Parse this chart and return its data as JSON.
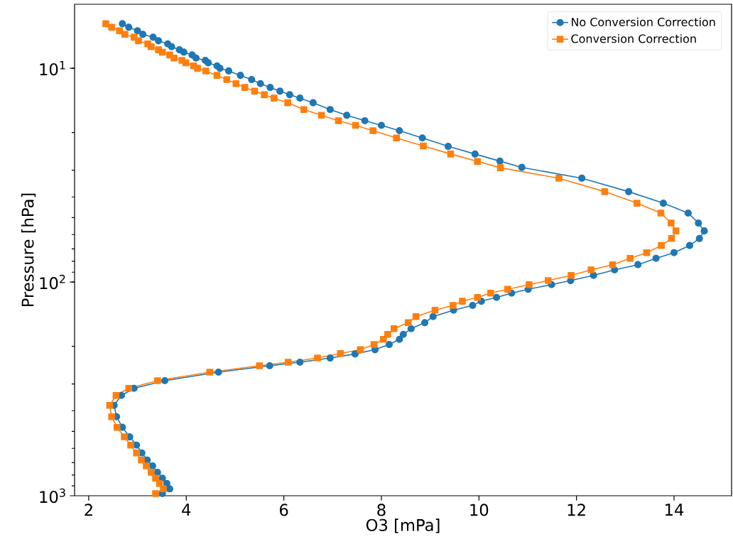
{
  "chart_data": {
    "type": "line",
    "xlabel": "O3 [mPa]",
    "ylabel": "Pressure [hPa]",
    "log": "y",
    "xlim": [
      1.71,
      15.18
    ],
    "xticks": [
      2,
      4,
      6,
      8,
      10,
      12,
      14
    ],
    "ylim": [
      1000,
      5.02
    ],
    "yticks": [
      {
        "value": 10,
        "label": "10$^{1}$"
      },
      {
        "value": 100,
        "label": "10$^{2}$"
      },
      {
        "value": 1000,
        "label": "10$^{3}$"
      }
    ],
    "legend": "top right",
    "grid": false,
    "line_style": "solid",
    "series": [
      {
        "name": "No Conversion Correction",
        "color": "#1f77b4",
        "marker": "circle",
        "x": [
          2.69,
          2.82,
          3.0,
          3.11,
          3.32,
          3.43,
          3.62,
          3.7,
          3.86,
          3.95,
          4.12,
          4.2,
          4.39,
          4.45,
          4.63,
          4.69,
          4.87,
          5.11,
          5.34,
          5.52,
          5.72,
          5.92,
          6.12,
          6.33,
          6.6,
          6.95,
          7.29,
          7.66,
          8.0,
          8.37,
          8.84,
          9.37,
          9.92,
          10.43,
          10.88,
          12.11,
          13.07,
          13.78,
          14.29,
          14.5,
          14.62,
          14.52,
          14.32,
          14.0,
          13.63,
          13.26,
          12.78,
          12.35,
          11.88,
          11.49,
          11.01,
          10.67,
          10.36,
          10.05,
          9.87,
          9.48,
          9.06,
          8.89,
          8.61,
          8.45,
          8.37,
          8.16,
          7.87,
          7.46,
          6.95,
          6.33,
          5.71,
          4.66,
          3.56,
          2.93,
          2.67,
          2.52,
          2.57,
          2.69,
          2.84,
          2.98,
          3.09,
          3.2,
          3.31,
          3.41,
          3.51,
          3.6,
          3.66,
          3.51
        ],
        "values": [
          6.19,
          6.43,
          6.68,
          6.94,
          7.16,
          7.44,
          7.69,
          7.93,
          8.2,
          8.41,
          8.67,
          8.96,
          9.19,
          9.43,
          9.75,
          10.0,
          10.3,
          10.8,
          11.3,
          11.8,
          12.3,
          12.8,
          13.3,
          13.8,
          14.5,
          15.6,
          16.6,
          17.6,
          18.5,
          19.6,
          21.2,
          23.2,
          25.2,
          27.2,
          29.1,
          32.7,
          37.8,
          42.8,
          47.6,
          53.0,
          57.7,
          62.6,
          67.5,
          72.9,
          77.5,
          83.0,
          87.8,
          93.1,
          98.5,
          102.9,
          108.2,
          112.8,
          118.1,
          123.0,
          128.7,
          135.5,
          145.1,
          155.0,
          165.4,
          175.8,
          185.4,
          196.1,
          207.3,
          217.1,
          226.8,
          237.4,
          246.6,
          264.2,
          289.6,
          314.4,
          339.4,
          377.7,
          426.8,
          478.6,
          530.2,
          579.7,
          630.6,
          680.7,
          725.4,
          777.3,
          827.8,
          876.1,
          928.5,
          977.2
        ]
      },
      {
        "name": "Conversion Correction",
        "color": "#ff7f0e",
        "marker": "square",
        "x": [
          2.35,
          2.47,
          2.63,
          2.74,
          2.93,
          3.02,
          3.21,
          3.28,
          3.43,
          3.51,
          3.66,
          3.75,
          3.91,
          3.99,
          4.15,
          4.23,
          4.4,
          4.63,
          4.83,
          5.02,
          5.2,
          5.4,
          5.6,
          5.8,
          6.08,
          6.41,
          6.77,
          7.12,
          7.47,
          7.83,
          8.31,
          8.86,
          9.42,
          9.97,
          10.44,
          11.64,
          12.58,
          13.24,
          13.73,
          13.94,
          14.04,
          13.95,
          13.74,
          13.44,
          13.1,
          12.74,
          12.3,
          11.89,
          11.42,
          11.03,
          10.59,
          10.24,
          9.97,
          9.66,
          9.47,
          9.1,
          8.71,
          8.55,
          8.26,
          8.13,
          8.04,
          7.85,
          7.57,
          7.16,
          6.69,
          6.09,
          5.5,
          4.48,
          3.41,
          2.82,
          2.56,
          2.43,
          2.47,
          2.58,
          2.73,
          2.86,
          2.98,
          3.08,
          3.18,
          3.28,
          3.37,
          3.45,
          3.53,
          3.37
        ],
        "values": [
          6.19,
          6.43,
          6.68,
          6.94,
          7.16,
          7.44,
          7.69,
          7.93,
          8.2,
          8.41,
          8.67,
          8.96,
          9.19,
          9.43,
          9.75,
          10.0,
          10.3,
          10.8,
          11.3,
          11.8,
          12.3,
          12.8,
          13.3,
          13.8,
          14.5,
          15.6,
          16.6,
          17.6,
          18.5,
          19.6,
          21.2,
          23.1,
          25.2,
          27.3,
          29.2,
          32.7,
          37.8,
          42.8,
          47.6,
          53.0,
          57.7,
          62.6,
          67.5,
          72.9,
          77.5,
          83.0,
          87.8,
          93.1,
          98.5,
          102.9,
          108.2,
          112.8,
          118.1,
          123.0,
          128.7,
          135.5,
          145.1,
          155.0,
          165.4,
          175.8,
          185.4,
          196.1,
          207.3,
          216.2,
          226.8,
          237.4,
          246.6,
          264.2,
          289.6,
          314.4,
          339.4,
          377.7,
          426.8,
          478.6,
          530.2,
          579.7,
          630.6,
          680.7,
          725.4,
          777.3,
          827.8,
          876.1,
          928.5,
          977.2
        ]
      }
    ]
  }
}
